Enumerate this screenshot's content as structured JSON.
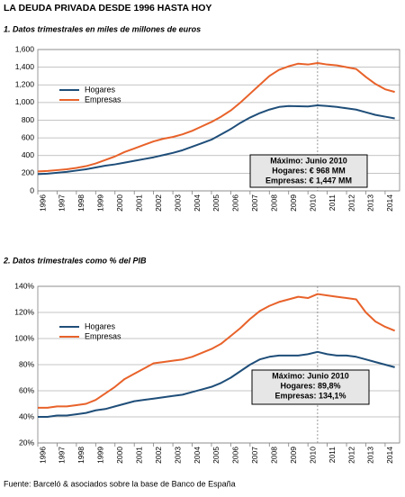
{
  "title": "LA DEUDA PRIVADA DESDE 1996 HASTA HOY",
  "source": "Fuente: Barceló & asociados sobre la base de Banco de España",
  "chart_data": [
    {
      "type": "line",
      "title": "1. Datos trimestrales en miles de millones de euros",
      "x": [
        1996,
        1996.5,
        1997,
        1997.5,
        1998,
        1998.5,
        1999,
        1999.5,
        2000,
        2000.5,
        2001,
        2001.5,
        2002,
        2002.5,
        2003,
        2003.5,
        2004,
        2004.5,
        2005,
        2005.5,
        2006,
        2006.5,
        2007,
        2007.5,
        2008,
        2008.5,
        2009,
        2009.5,
        2010,
        2010.5,
        2011,
        2011.5,
        2012,
        2012.5,
        2013,
        2013.5,
        2014,
        2014.5
      ],
      "series": [
        {
          "name": "Hogares",
          "color": "#1f4e79",
          "values": [
            190,
            195,
            205,
            215,
            230,
            245,
            265,
            285,
            300,
            320,
            340,
            360,
            380,
            405,
            430,
            460,
            500,
            540,
            580,
            640,
            700,
            770,
            830,
            880,
            920,
            950,
            960,
            958,
            955,
            968,
            960,
            950,
            935,
            920,
            890,
            860,
            840,
            820
          ]
        },
        {
          "name": "Empresas",
          "color": "#e8622a",
          "values": [
            220,
            225,
            235,
            245,
            260,
            280,
            310,
            350,
            390,
            440,
            480,
            520,
            560,
            590,
            610,
            640,
            680,
            730,
            780,
            840,
            910,
            1000,
            1100,
            1200,
            1300,
            1370,
            1410,
            1440,
            1430,
            1447,
            1430,
            1420,
            1400,
            1380,
            1290,
            1210,
            1150,
            1120
          ]
        }
      ],
      "xlim": [
        1996,
        2014.75
      ],
      "xticks": [
        1996,
        1997,
        1998,
        1999,
        2000,
        2001,
        2002,
        2003,
        2004,
        2005,
        2006,
        2007,
        2008,
        2009,
        2010,
        2011,
        2012,
        2013,
        2014
      ],
      "ylim": [
        0,
        1600
      ],
      "yticks": [
        0,
        200,
        400,
        600,
        800,
        {
          "value": 1000,
          "label": "1,000"
        },
        {
          "value": 1200,
          "label": "1,200"
        },
        {
          "value": 1400,
          "label": "1,400"
        },
        {
          "value": 1600,
          "label": "1,600"
        }
      ],
      "grid": true,
      "legend": "upper left",
      "annotation": {
        "x": 2010.5,
        "lines": [
          "Máximo: Junio 2010",
          "Hogares: € 968 MM",
          "Empresas: € 1,447 MM"
        ]
      }
    },
    {
      "type": "line",
      "title": "2. Datos trimestrales como % del PIB",
      "x": [
        1996,
        1996.5,
        1997,
        1997.5,
        1998,
        1998.5,
        1999,
        1999.5,
        2000,
        2000.5,
        2001,
        2001.5,
        2002,
        2002.5,
        2003,
        2003.5,
        2004,
        2004.5,
        2005,
        2005.5,
        2006,
        2006.5,
        2007,
        2007.5,
        2008,
        2008.5,
        2009,
        2009.5,
        2010,
        2010.5,
        2011,
        2011.5,
        2012,
        2012.5,
        2013,
        2013.5,
        2014,
        2014.5
      ],
      "series": [
        {
          "name": "Hogares",
          "color": "#1f4e79",
          "values": [
            40,
            40,
            41,
            41,
            42,
            43,
            45,
            46,
            48,
            50,
            52,
            53,
            54,
            55,
            56,
            57,
            59,
            61,
            63,
            66,
            70,
            75,
            80,
            84,
            86,
            87,
            87,
            87,
            88,
            89.8,
            88,
            87,
            87,
            86,
            84,
            82,
            80,
            78
          ]
        },
        {
          "name": "Empresas",
          "color": "#e8622a",
          "values": [
            47,
            47,
            48,
            48,
            49,
            50,
            53,
            58,
            63,
            69,
            73,
            77,
            81,
            82,
            83,
            84,
            86,
            89,
            92,
            96,
            102,
            108,
            115,
            121,
            125,
            128,
            130,
            132,
            131,
            134.1,
            133,
            132,
            131,
            130,
            120,
            113,
            109,
            106
          ]
        }
      ],
      "xlim": [
        1996,
        2014.75
      ],
      "xticks": [
        1996,
        1997,
        1998,
        1999,
        2000,
        2001,
        2002,
        2003,
        2004,
        2005,
        2006,
        2007,
        2008,
        2009,
        2010,
        2011,
        2012,
        2013,
        2014
      ],
      "ylim": [
        20,
        140
      ],
      "yticks": [
        {
          "value": 20,
          "label": "20%"
        },
        {
          "value": 40,
          "label": "40%"
        },
        {
          "value": 60,
          "label": "60%"
        },
        {
          "value": 80,
          "label": "80%"
        },
        {
          "value": 100,
          "label": "100%"
        },
        {
          "value": 120,
          "label": "120%"
        },
        {
          "value": 140,
          "label": "140%"
        }
      ],
      "grid": true,
      "legend": "upper left",
      "annotation": {
        "x": 2010.5,
        "lines": [
          "Máximo: Junio 2010",
          "Hogares: 89,8%",
          "Empresas: 134,1%"
        ]
      }
    }
  ]
}
